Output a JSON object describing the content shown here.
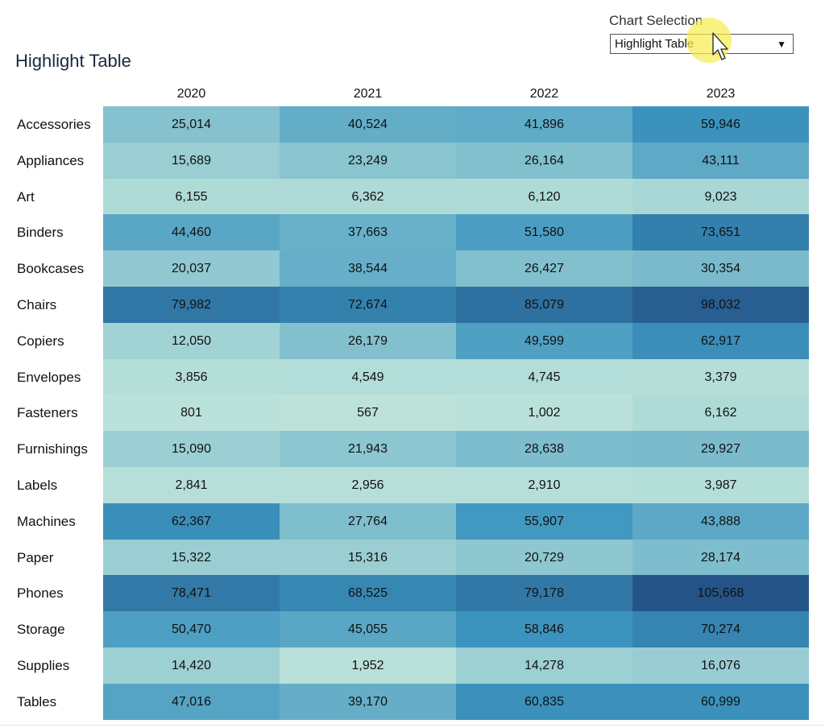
{
  "title": "Highlight Table",
  "selector": {
    "label": "Chart Selection",
    "value": "Highlight Table"
  },
  "colors": {
    "low": "#bde3da",
    "mid": "#3c95bf",
    "high": "#245487"
  },
  "chart_data": {
    "type": "table",
    "title": "Highlight Table",
    "columns": [
      "2020",
      "2021",
      "2022",
      "2023"
    ],
    "rows": [
      {
        "label": "Accessories",
        "values": [
          25014,
          40524,
          41896,
          59946
        ]
      },
      {
        "label": "Appliances",
        "values": [
          15689,
          23249,
          26164,
          43111
        ]
      },
      {
        "label": "Art",
        "values": [
          6155,
          6362,
          6120,
          9023
        ]
      },
      {
        "label": "Binders",
        "values": [
          44460,
          37663,
          51580,
          73651
        ]
      },
      {
        "label": "Bookcases",
        "values": [
          20037,
          38544,
          26427,
          30354
        ]
      },
      {
        "label": "Chairs",
        "values": [
          79982,
          72674,
          85079,
          98032
        ]
      },
      {
        "label": "Copiers",
        "values": [
          12050,
          26179,
          49599,
          62917
        ]
      },
      {
        "label": "Envelopes",
        "values": [
          3856,
          4549,
          4745,
          3379
        ]
      },
      {
        "label": "Fasteners",
        "values": [
          801,
          567,
          1002,
          6162
        ]
      },
      {
        "label": "Furnishings",
        "values": [
          15090,
          21943,
          28638,
          29927
        ]
      },
      {
        "label": "Labels",
        "values": [
          2841,
          2956,
          2910,
          3987
        ]
      },
      {
        "label": "Machines",
        "values": [
          62367,
          27764,
          55907,
          43888
        ]
      },
      {
        "label": "Paper",
        "values": [
          15322,
          15316,
          20729,
          28174
        ]
      },
      {
        "label": "Phones",
        "values": [
          78471,
          68525,
          79178,
          105668
        ]
      },
      {
        "label": "Storage",
        "values": [
          50470,
          45055,
          58846,
          70274
        ]
      },
      {
        "label": "Supplies",
        "values": [
          14420,
          1952,
          14278,
          16076
        ]
      },
      {
        "label": "Tables",
        "values": [
          47016,
          39170,
          60835,
          60999
        ]
      }
    ]
  }
}
